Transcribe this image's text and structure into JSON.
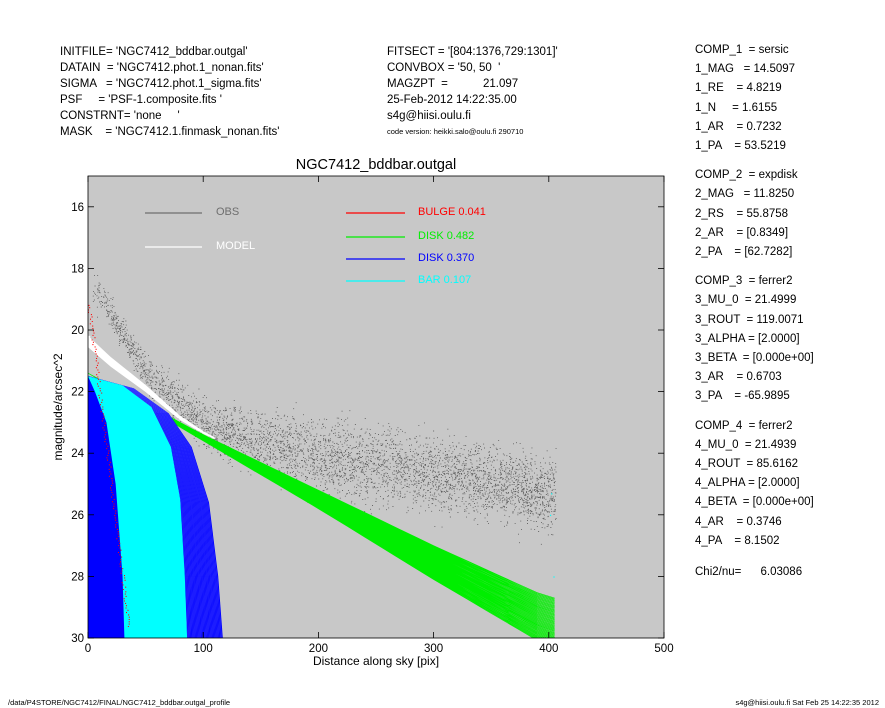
{
  "header_left": [
    "INITFILE= 'NGC7412_bddbar.outgal'",
    "DATAIN  = 'NGC7412.phot.1_nonan.fits'",
    "SIGMA   = 'NGC7412.phot.1_sigma.fits'",
    "PSF     = 'PSF-1.composite.fits '",
    "CONSTRNT= 'none     '",
    "MASK    = 'NGC7412.1.finmask_nonan.fits'"
  ],
  "header_mid": [
    "FITSECT = '[804:1376,729:1301]'",
    "CONVBOX = '50, 50  '",
    "MAGZPT  =           21.097",
    "25-Feb-2012 14:22:35.00",
    "s4g@hiisi.oulu.fi",
    "code version: heikki.salo@oulu.fi 290710"
  ],
  "components": [
    {
      "lines": [
        "COMP_1  = sersic",
        "1_MAG   = 14.5097",
        "1_RE    = 4.8219",
        "1_N     = 1.6155",
        "1_AR    = 0.7232",
        "1_PA    = 53.5219"
      ]
    },
    {
      "lines": [
        "COMP_2  = expdisk",
        "2_MAG   = 11.8250",
        "2_RS    = 55.8758",
        "2_AR    = [0.8349]",
        "2_PA    = [62.7282]"
      ]
    },
    {
      "lines": [
        "COMP_3  = ferrer2",
        "3_MU_0  = 21.4999",
        "3_ROUT  = 119.0071",
        "3_ALPHA = [2.0000]",
        "3_BETA  = [0.000e+00]",
        "3_AR    = 0.6703",
        "3_PA    = -65.9895"
      ]
    },
    {
      "lines": [
        "COMP_4  = ferrer2",
        "4_MU_0  = 21.4939",
        "4_ROUT  = 85.6162",
        "4_ALPHA = [2.0000]",
        "4_BETA  = [0.000e+00]",
        "4_AR    = 0.3746",
        "4_PA    = 8.1502"
      ]
    }
  ],
  "chi2": "Chi2/nu=      6.03086",
  "footer_left": "/data/P4STORE/NGC7412/FINAL/NGC7412_bddbar.outgal_profile",
  "footer_right": "s4g@hiisi.oulu.fi  Sat Feb 25 14:22:35 2012",
  "colors": {
    "panel_bg": "#c8c8c8",
    "obs": "#4a4a4a",
    "model": "#ffffff",
    "bulge": "#ff0000",
    "disk1": "#00ee00",
    "disk2": "#0000ff",
    "bar": "#00ffff"
  },
  "chart_data": {
    "type": "scatter",
    "title": "NGC7412_bddbar.outgal",
    "xlabel": "Distance along sky [pix]",
    "ylabel": "magnitude/arcsec^2",
    "xlim": [
      0,
      500
    ],
    "ylim": [
      30,
      15
    ],
    "y_inverted": true,
    "xticks": [
      "0",
      "100",
      "200",
      "300",
      "400",
      "500"
    ],
    "yticks": [
      "16",
      "18",
      "20",
      "22",
      "24",
      "26",
      "28",
      "30"
    ],
    "legend": [
      {
        "label": "OBS",
        "color": "#6e6e6e"
      },
      {
        "label": "MODEL",
        "color": "#ffffff"
      },
      {
        "label": "BULGE  0.041",
        "color": "#ff0000"
      },
      {
        "label": "DISK  0.482",
        "color": "#00ee00"
      },
      {
        "label": "DISK  0.370",
        "color": "#0000ff"
      },
      {
        "label": "BAR  0.107",
        "color": "#00ffff"
      }
    ],
    "series": [
      {
        "name": "OBS",
        "description_points": [
          [
            0,
            18.2
          ],
          [
            50,
            21.4
          ],
          [
            100,
            23.1
          ],
          [
            150,
            23.7
          ],
          [
            200,
            24.1
          ],
          [
            250,
            24.4
          ],
          [
            300,
            24.7
          ],
          [
            350,
            25.0
          ],
          [
            400,
            25.3
          ]
        ],
        "extent_x": [
          0,
          410
        ]
      },
      {
        "name": "MODEL",
        "points": [
          [
            0,
            20.2
          ],
          [
            20,
            20.9
          ],
          [
            50,
            21.8
          ],
          [
            80,
            22.8
          ],
          [
            100,
            23.3
          ],
          [
            110,
            23.5
          ]
        ]
      },
      {
        "name": "BULGE  0.041",
        "points": [
          [
            0,
            19.0
          ],
          [
            5,
            20.5
          ],
          [
            10,
            22.0
          ],
          [
            15,
            23.5
          ],
          [
            20,
            25.0
          ],
          [
            25,
            26.5
          ],
          [
            30,
            28.0
          ],
          [
            35,
            29.5
          ]
        ]
      },
      {
        "name": "DISK  0.482",
        "points": [
          [
            0,
            21.4
          ],
          [
            100,
            23.6
          ],
          [
            200,
            25.8
          ],
          [
            300,
            28.1
          ],
          [
            400,
            30.3
          ]
        ],
        "upper_edge": [
          [
            0,
            21.4
          ],
          [
            100,
            23.4
          ],
          [
            200,
            25.2
          ],
          [
            300,
            27.0
          ],
          [
            400,
            28.7
          ]
        ]
      },
      {
        "name": "DISK  0.370",
        "outer_edge": [
          [
            0,
            21.5
          ],
          [
            40,
            21.9
          ],
          [
            70,
            22.7
          ],
          [
            90,
            23.8
          ],
          [
            105,
            25.6
          ],
          [
            113,
            28.0
          ],
          [
            117,
            30.0
          ]
        ]
      },
      {
        "name": "BAR  0.107",
        "outer_edge": [
          [
            0,
            21.5
          ],
          [
            30,
            21.8
          ],
          [
            55,
            22.5
          ],
          [
            72,
            23.8
          ],
          [
            80,
            25.5
          ],
          [
            84,
            28.0
          ],
          [
            86,
            30.0
          ]
        ]
      }
    ]
  }
}
